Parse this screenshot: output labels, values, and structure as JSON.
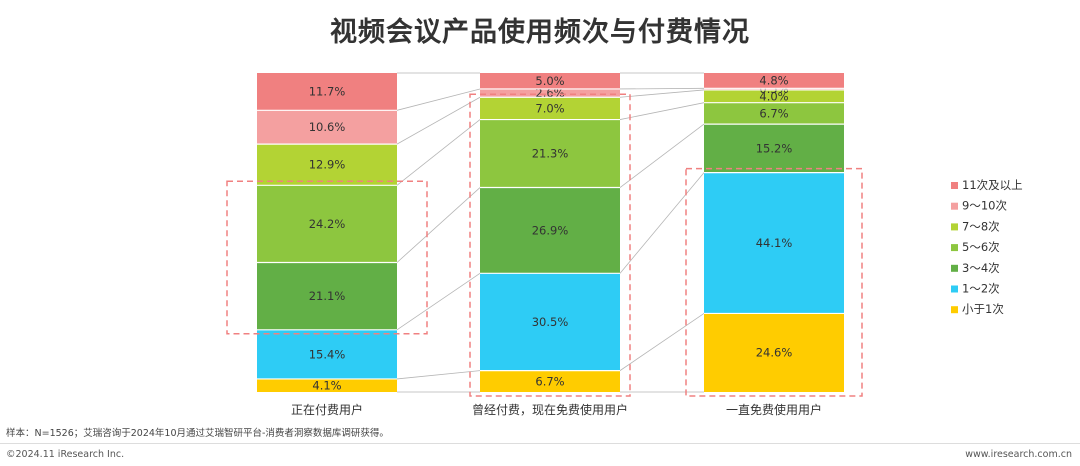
{
  "title": "视频会议产品使用频次与付费情况",
  "footnote": "样本：N=1526；艾瑞咨询于2024年10月通过艾瑞智研平台-消费者洞察数据库调研获得。",
  "copyright": "©2024.11 iResearch Inc.",
  "website": "www.iresearch.com.cn",
  "chart_data": {
    "type": "bar",
    "stacked": true,
    "stack_mode": "percent",
    "categories": [
      "正在付费用户",
      "曾经付费，现在免费使用用户",
      "一直免费使用用户"
    ],
    "series": [
      {
        "name": "小于1次",
        "color": "#FFCC00",
        "values": [
          4.1,
          6.7,
          24.6
        ]
      },
      {
        "name": "1～2次",
        "color": "#2ECCF5",
        "values": [
          15.4,
          30.5,
          44.1
        ]
      },
      {
        "name": "3～4次",
        "color": "#62AF46",
        "values": [
          21.1,
          26.9,
          15.2
        ]
      },
      {
        "name": "5～6次",
        "color": "#8DC63F",
        "values": [
          24.2,
          21.3,
          6.7
        ]
      },
      {
        "name": "7～8次",
        "color": "#B3D334",
        "values": [
          12.9,
          7.0,
          4.0
        ]
      },
      {
        "name": "9～10次",
        "color": "#F4A0A0",
        "values": [
          10.6,
          2.6,
          0.5
        ]
      },
      {
        "name": "11次及以上",
        "color": "#F08080",
        "values": [
          11.7,
          5.0,
          4.8
        ]
      }
    ],
    "legend_position": "right",
    "legend_order": [
      "11次及以上",
      "9～10次",
      "7～8次",
      "5～6次",
      "3～4次",
      "1～2次",
      "小于1次"
    ],
    "highlight_color": "#F08080"
  }
}
